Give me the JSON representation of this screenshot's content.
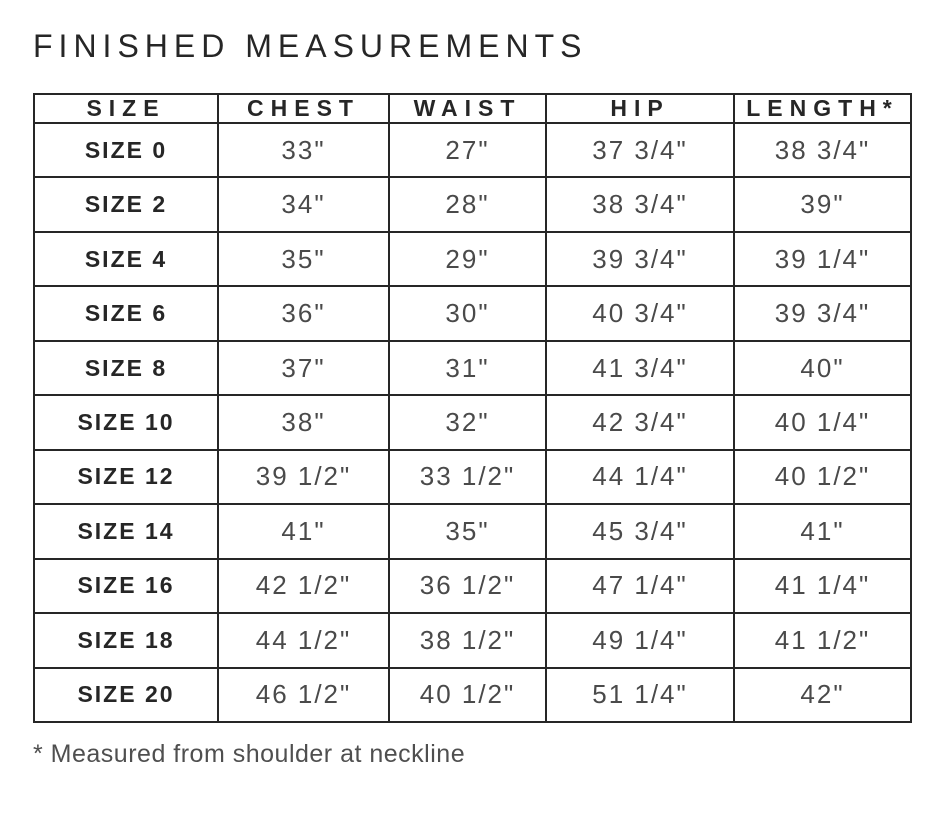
{
  "title": "FINISHED MEASUREMENTS",
  "footnote": "* Measured from shoulder at neckline",
  "colors": {
    "background": "#ffffff",
    "heading_text": "#262626",
    "value_text": "#4a4a4a",
    "border": "#262626"
  },
  "chart_data": {
    "type": "table",
    "title": "FINISHED MEASUREMENTS",
    "columns": [
      "SIZE",
      "CHEST",
      "WAIST",
      "HIP",
      "LENGTH*"
    ],
    "rows": [
      [
        "SIZE 0",
        "33\"",
        "27\"",
        "37 3/4\"",
        "38 3/4\""
      ],
      [
        "SIZE 2",
        "34\"",
        "28\"",
        "38 3/4\"",
        "39\""
      ],
      [
        "SIZE 4",
        "35\"",
        "29\"",
        "39 3/4\"",
        "39 1/4\""
      ],
      [
        "SIZE 6",
        "36\"",
        "30\"",
        "40 3/4\"",
        "39 3/4\""
      ],
      [
        "SIZE 8",
        "37\"",
        "31\"",
        "41 3/4\"",
        "40\""
      ],
      [
        "SIZE 10",
        "38\"",
        "32\"",
        "42 3/4\"",
        "40 1/4\""
      ],
      [
        "SIZE 12",
        "39 1/2\"",
        "33 1/2\"",
        "44 1/4\"",
        "40 1/2\""
      ],
      [
        "SIZE 14",
        "41\"",
        "35\"",
        "45 3/4\"",
        "41\""
      ],
      [
        "SIZE 16",
        "42 1/2\"",
        "36 1/2\"",
        "47 1/4\"",
        "41 1/4\""
      ],
      [
        "SIZE 18",
        "44 1/2\"",
        "38 1/2\"",
        "49 1/4\"",
        "41 1/2\""
      ],
      [
        "SIZE 20",
        "46 1/2\"",
        "40 1/2\"",
        "51 1/4\"",
        "42\""
      ]
    ],
    "footnote": "* Measured from shoulder at neckline",
    "layout": {
      "grid": "full-borders",
      "header_row": true,
      "value_alignment": "center"
    }
  }
}
